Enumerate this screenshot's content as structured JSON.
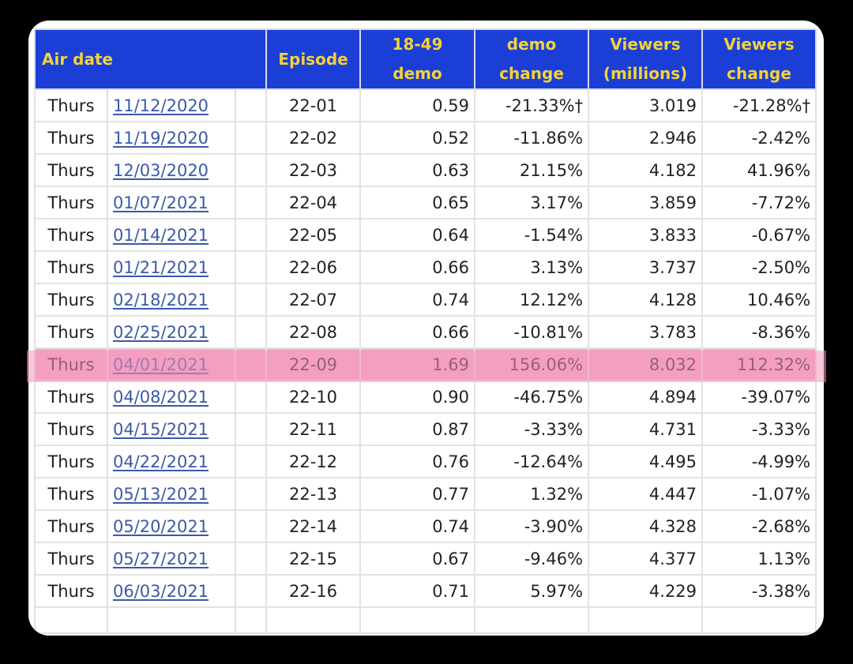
{
  "table": {
    "headers": {
      "air_date": "Air date",
      "episode": "Episode",
      "demo": "18-49 demo",
      "demo_change": "demo change",
      "viewers": "Viewers (millions)",
      "viewers_change": "Viewers change"
    },
    "rows": [
      {
        "day": "Thurs",
        "date": "11/12/2020",
        "episode": "22-01",
        "demo": "0.59",
        "demo_change": "-21.33%†",
        "viewers": "3.019",
        "viewers_change": "-21.28%†"
      },
      {
        "day": "Thurs",
        "date": "11/19/2020",
        "episode": "22-02",
        "demo": "0.52",
        "demo_change": "-11.86%",
        "viewers": "2.946",
        "viewers_change": "-2.42%"
      },
      {
        "day": "Thurs",
        "date": "12/03/2020",
        "episode": "22-03",
        "demo": "0.63",
        "demo_change": "21.15%",
        "viewers": "4.182",
        "viewers_change": "41.96%"
      },
      {
        "day": "Thurs",
        "date": "01/07/2021",
        "episode": "22-04",
        "demo": "0.65",
        "demo_change": "3.17%",
        "viewers": "3.859",
        "viewers_change": "-7.72%"
      },
      {
        "day": "Thurs",
        "date": "01/14/2021",
        "episode": "22-05",
        "demo": "0.64",
        "demo_change": "-1.54%",
        "viewers": "3.833",
        "viewers_change": "-0.67%"
      },
      {
        "day": "Thurs",
        "date": "01/21/2021",
        "episode": "22-06",
        "demo": "0.66",
        "demo_change": "3.13%",
        "viewers": "3.737",
        "viewers_change": "-2.50%"
      },
      {
        "day": "Thurs",
        "date": "02/18/2021",
        "episode": "22-07",
        "demo": "0.74",
        "demo_change": "12.12%",
        "viewers": "4.128",
        "viewers_change": "10.46%"
      },
      {
        "day": "Thurs",
        "date": "02/25/2021",
        "episode": "22-08",
        "demo": "0.66",
        "demo_change": "-10.81%",
        "viewers": "3.783",
        "viewers_change": "-8.36%"
      },
      {
        "day": "Thurs",
        "date": "04/01/2021",
        "episode": "22-09",
        "demo": "1.69",
        "demo_change": "156.06%",
        "viewers": "8.032",
        "viewers_change": "112.32%",
        "highlighted": true
      },
      {
        "day": "Thurs",
        "date": "04/08/2021",
        "episode": "22-10",
        "demo": "0.90",
        "demo_change": "-46.75%",
        "viewers": "4.894",
        "viewers_change": "-39.07%"
      },
      {
        "day": "Thurs",
        "date": "04/15/2021",
        "episode": "22-11",
        "demo": "0.87",
        "demo_change": "-3.33%",
        "viewers": "4.731",
        "viewers_change": "-3.33%"
      },
      {
        "day": "Thurs",
        "date": "04/22/2021",
        "episode": "22-12",
        "demo": "0.76",
        "demo_change": "-12.64%",
        "viewers": "4.495",
        "viewers_change": "-4.99%"
      },
      {
        "day": "Thurs",
        "date": "05/13/2021",
        "episode": "22-13",
        "demo": "0.77",
        "demo_change": "1.32%",
        "viewers": "4.447",
        "viewers_change": "-1.07%"
      },
      {
        "day": "Thurs",
        "date": "05/20/2021",
        "episode": "22-14",
        "demo": "0.74",
        "demo_change": "-3.90%",
        "viewers": "4.328",
        "viewers_change": "-2.68%"
      },
      {
        "day": "Thurs",
        "date": "05/27/2021",
        "episode": "22-15",
        "demo": "0.67",
        "demo_change": "-9.46%",
        "viewers": "4.377",
        "viewers_change": "1.13%"
      },
      {
        "day": "Thurs",
        "date": "06/03/2021",
        "episode": "22-16",
        "demo": "0.71",
        "demo_change": "5.97%",
        "viewers": "4.229",
        "viewers_change": "-3.38%"
      }
    ]
  },
  "colors": {
    "header_bg": "#1b3fd6",
    "header_text": "#f3d23a",
    "negative": "#8a1c1c",
    "positive": "#3a8a2a",
    "highlight": "#f4a9c6",
    "link": "#3a5aa8"
  }
}
